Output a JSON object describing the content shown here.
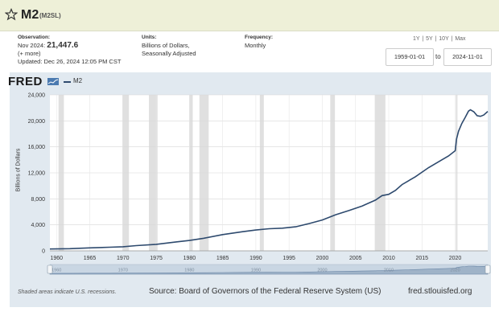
{
  "header": {
    "title": "M2",
    "series_id": "(M2SL)",
    "star_icon": "star-outline-icon"
  },
  "observation": {
    "label": "Observation:",
    "date": "Nov 2024:",
    "value": "21,447.6",
    "more": "(+ more)",
    "updated": "Updated: Dec 26, 2024 12:05 PM CST"
  },
  "units": {
    "label": "Units:",
    "line1": "Billions of Dollars,",
    "line2": "Seasonally Adjusted"
  },
  "frequency": {
    "label": "Frequency:",
    "value": "Monthly"
  },
  "range_controls": {
    "options": "1Y | 5Y | 10Y | Max",
    "start_date": "1959-01-01",
    "to_label": "to",
    "end_date": "2024-11-01"
  },
  "logo": {
    "text": "FRED"
  },
  "legend": {
    "label": "M2",
    "color": "#2e4a6e"
  },
  "footer": {
    "note": "Shaded areas indicate U.S. recessions.",
    "source": "Source: Board of Governors of the Federal Reserve System (US)",
    "url": "fred.stlouisfed.org"
  },
  "chart_data": {
    "type": "line",
    "ylabel": "Billions of Dollars",
    "xlim": [
      1959,
      2024.9
    ],
    "ylim": [
      0,
      24000
    ],
    "yticks": [
      0,
      4000,
      8000,
      12000,
      16000,
      20000,
      24000
    ],
    "ytick_labels": [
      "0",
      "4,000",
      "8,000",
      "12,000",
      "16,000",
      "20,000",
      "24,000"
    ],
    "xticks": [
      1960,
      1965,
      1970,
      1975,
      1980,
      1985,
      1990,
      1995,
      2000,
      2005,
      2010,
      2015,
      2020
    ],
    "grid": true,
    "recessions": [
      [
        1960.3,
        1961.1
      ],
      [
        1969.9,
        1970.9
      ],
      [
        1973.9,
        1975.2
      ],
      [
        1980.0,
        1980.5
      ],
      [
        1981.5,
        1982.9
      ],
      [
        1990.6,
        1991.2
      ],
      [
        2001.2,
        2001.9
      ],
      [
        2007.9,
        2009.5
      ],
      [
        2020.1,
        2020.3
      ]
    ],
    "series": [
      {
        "name": "M2",
        "color": "#2e4a6e",
        "x": [
          1959,
          1962,
          1965,
          1968,
          1970,
          1972,
          1975,
          1978,
          1980,
          1982,
          1985,
          1988,
          1990,
          1992,
          1994,
          1996,
          1998,
          2000,
          2002,
          2004,
          2006,
          2008,
          2009,
          2010,
          2011,
          2012,
          2014,
          2016,
          2018,
          2019,
          2020.0,
          2020.2,
          2020.5,
          2021.0,
          2021.5,
          2022.0,
          2022.3,
          2022.8,
          2023.3,
          2023.8,
          2024.3,
          2024.9
        ],
        "y": [
          290,
          330,
          460,
          560,
          630,
          800,
          1000,
          1370,
          1600,
          1900,
          2500,
          2950,
          3200,
          3400,
          3490,
          3700,
          4200,
          4750,
          5550,
          6200,
          6900,
          7800,
          8500,
          8700,
          9300,
          10200,
          11400,
          12800,
          14000,
          14600,
          15400,
          17200,
          18400,
          19600,
          20500,
          21500,
          21700,
          21400,
          20800,
          20700,
          20900,
          21450
        ]
      }
    ],
    "navigator": {
      "x_labels": [
        "1960",
        "1970",
        "1980",
        "1990",
        "2000",
        "2010",
        "2020"
      ]
    }
  }
}
